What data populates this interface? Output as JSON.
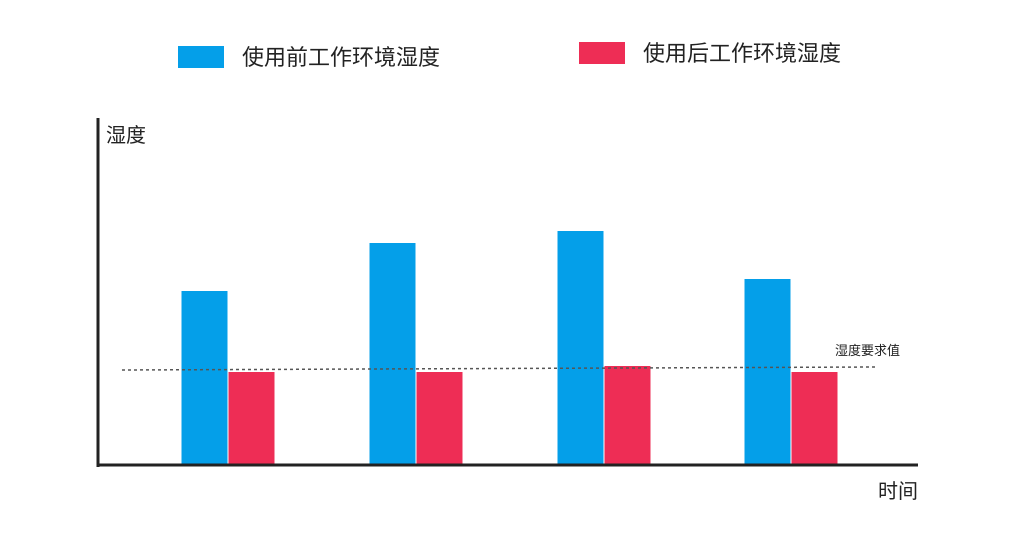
{
  "chart_data": {
    "type": "bar",
    "categories": [
      "",
      "",
      "",
      ""
    ],
    "series": [
      {
        "name": "使用前工作环境湿度",
        "color": "#049FE9",
        "values": [
          58,
          74,
          78,
          62
        ]
      },
      {
        "name": "使用后工作环境湿度",
        "color": "#EE2D55",
        "values": [
          31,
          31,
          33,
          31
        ]
      }
    ],
    "reference_line": {
      "label": "湿度要求值",
      "value": 32,
      "style": "dashed"
    },
    "xlabel": "时间",
    "ylabel": "湿度",
    "ylim": [
      0,
      115
    ],
    "legend_position": "top",
    "grid": false,
    "axis_color": "#222222"
  }
}
